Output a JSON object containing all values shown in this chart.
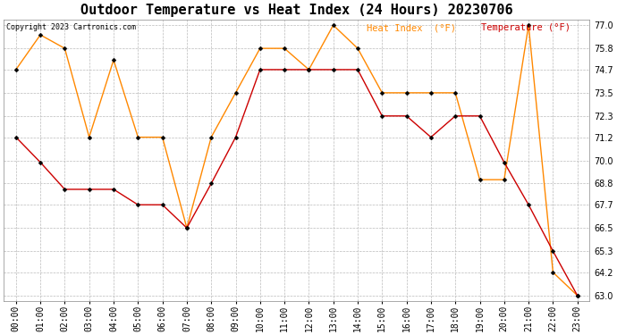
{
  "title": "Outdoor Temperature vs Heat Index (24 Hours) 20230706",
  "copyright": "Copyright 2023 Cartronics.com",
  "legend_heat": "Heat Index  (°F)",
  "legend_temp": "Temperature (°F)",
  "hours": [
    "00:00",
    "01:00",
    "02:00",
    "03:00",
    "04:00",
    "05:00",
    "06:00",
    "07:00",
    "08:00",
    "09:00",
    "10:00",
    "11:00",
    "12:00",
    "13:00",
    "14:00",
    "15:00",
    "16:00",
    "17:00",
    "18:00",
    "19:00",
    "20:00",
    "21:00",
    "22:00",
    "23:00"
  ],
  "temperature": [
    71.2,
    69.9,
    68.5,
    68.5,
    68.5,
    67.7,
    67.7,
    66.5,
    68.8,
    71.2,
    74.7,
    74.7,
    74.7,
    74.7,
    74.7,
    72.3,
    72.3,
    71.2,
    72.3,
    72.3,
    69.9,
    67.7,
    65.3,
    63.0
  ],
  "heat_index": [
    74.7,
    76.5,
    75.8,
    71.2,
    75.2,
    71.2,
    71.2,
    66.5,
    71.2,
    73.5,
    75.8,
    75.8,
    74.7,
    77.0,
    75.8,
    73.5,
    73.5,
    73.5,
    73.5,
    69.0,
    69.0,
    77.0,
    64.2,
    63.0
  ],
  "temp_color": "#cc0000",
  "heat_color": "#ff8800",
  "marker": "D",
  "marker_size": 2.5,
  "background_color": "#ffffff",
  "grid_color": "#bbbbbb",
  "ylim_min": 63.0,
  "ylim_max": 77.0,
  "yticks": [
    63.0,
    64.2,
    65.3,
    66.5,
    67.7,
    68.8,
    70.0,
    71.2,
    72.3,
    73.5,
    74.7,
    75.8,
    77.0
  ],
  "title_fontsize": 11,
  "tick_fontsize": 7,
  "copyright_fontsize": 6,
  "legend_fontsize": 7.5,
  "linewidth": 1.0
}
